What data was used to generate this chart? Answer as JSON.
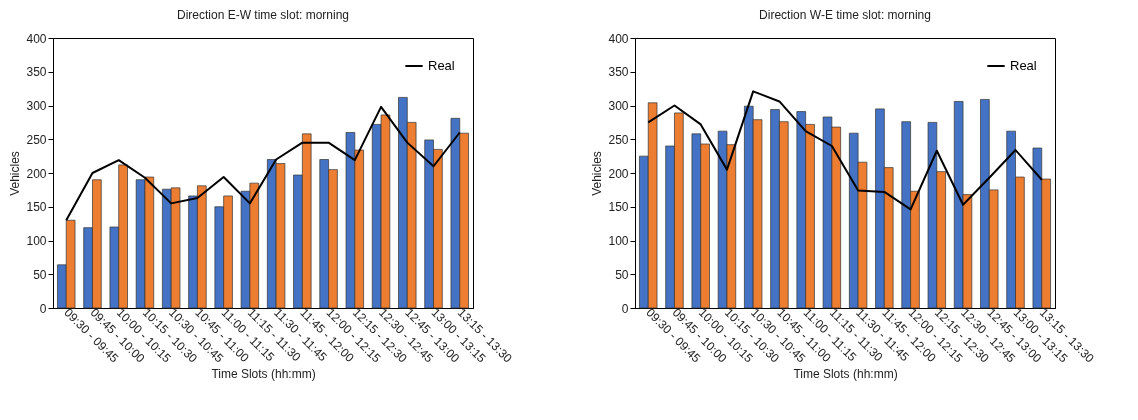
{
  "chart_data": [
    {
      "type": "bar",
      "title": "Direction E-W time slot: morning",
      "xlabel": "Time Slots (hh:mm)",
      "ylabel": "Vehicles",
      "categories": [
        "09:30 - 09:45",
        "09:45 - 10:00",
        "10:00 - 10:15",
        "10:15 - 10:30",
        "10:30 - 10:45",
        "10:45 - 11:00",
        "11:00 - 11:15",
        "11:15 - 11:30",
        "11:30 - 11:45",
        "11:45 - 12:00",
        "12:00 - 12:15",
        "12:15 - 12:30",
        "12:30 - 12:45",
        "12:45 - 13:00",
        "13:00 - 13:15",
        "13:15 - 13:30"
      ],
      "ylim": [
        0,
        400
      ],
      "yticks": [
        0,
        50,
        100,
        150,
        200,
        250,
        300,
        350,
        400
      ],
      "grid": false,
      "legend": "top right",
      "series": [
        {
          "color": "#4472c4",
          "values": [
            64,
            119,
            120,
            190,
            176,
            166,
            150,
            173,
            220,
            197,
            220,
            260,
            272,
            312,
            249,
            281
          ]
        },
        {
          "color": "#ed7d31",
          "values": [
            130,
            190,
            212,
            194,
            178,
            181,
            166,
            185,
            214,
            258,
            205,
            234,
            286,
            275,
            235,
            259
          ]
        },
        {
          "name": "Real",
          "type": "line",
          "color": "#000000",
          "values": [
            130,
            200,
            219,
            193,
            155,
            163,
            194,
            155,
            220,
            245,
            245,
            219,
            298,
            245,
            210,
            260
          ]
        }
      ]
    },
    {
      "type": "bar",
      "title": "Direction W-E time slot: morning",
      "xlabel": "Time Slots (hh:mm)",
      "ylabel": "Vehicles",
      "categories": [
        "09:30 - 09:45",
        "09:45 - 10:00",
        "10:00 - 10:15",
        "10:15 - 10:30",
        "10:30 - 10:45",
        "10:45 - 11:00",
        "11:00 - 11:15",
        "11:15 - 11:30",
        "11:30 - 11:45",
        "11:45 - 12:00",
        "12:00 - 12:15",
        "12:15 - 12:30",
        "12:30 - 12:45",
        "12:45 - 13:00",
        "13:00 - 13:15",
        "13:15 - 13:30"
      ],
      "ylim": [
        0,
        400
      ],
      "yticks": [
        0,
        50,
        100,
        150,
        200,
        250,
        300,
        350,
        400
      ],
      "grid": false,
      "legend": "top right",
      "series": [
        {
          "color": "#4472c4",
          "values": [
            225,
            240,
            258,
            262,
            299,
            294,
            291,
            283,
            259,
            295,
            276,
            275,
            306,
            309,
            262,
            237
          ]
        },
        {
          "color": "#ed7d31",
          "values": [
            304,
            289,
            243,
            242,
            279,
            276,
            272,
            268,
            216,
            208,
            173,
            202,
            168,
            175,
            194,
            191
          ]
        },
        {
          "name": "Real",
          "type": "line",
          "color": "#000000",
          "values": [
            275,
            300,
            272,
            205,
            321,
            306,
            262,
            240,
            174,
            172,
            146,
            233,
            153,
            193,
            234,
            190
          ]
        }
      ]
    }
  ]
}
